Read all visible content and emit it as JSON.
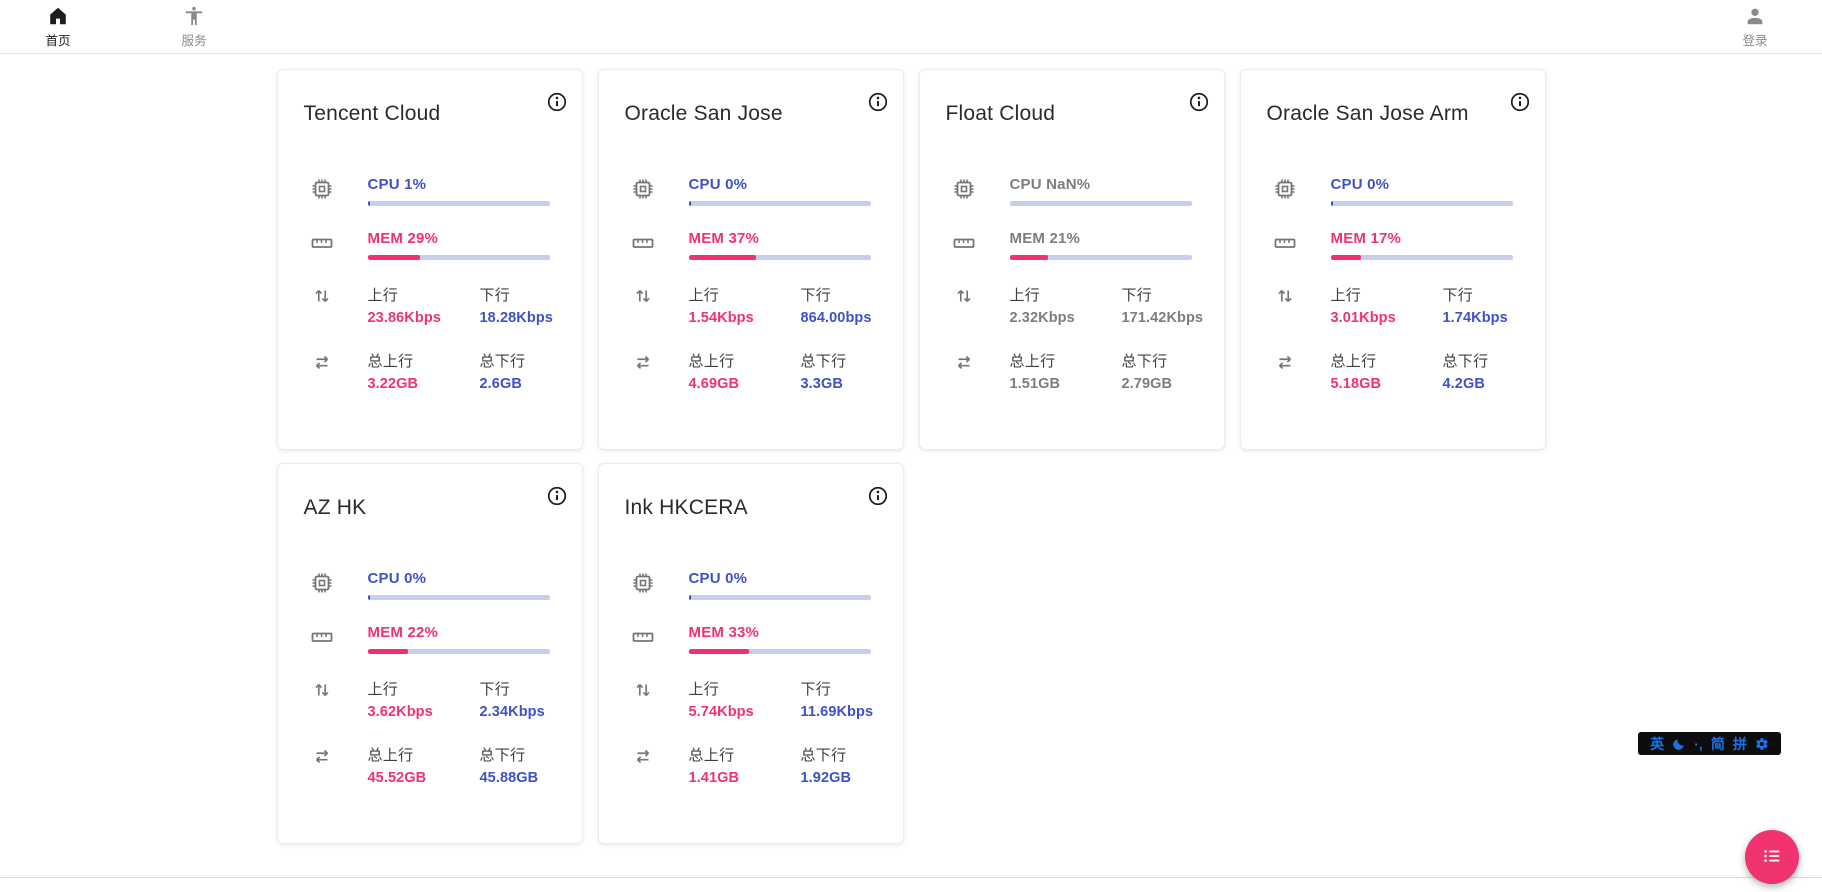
{
  "nav": {
    "home": {
      "label": "首页"
    },
    "services": {
      "label": "服务"
    },
    "login": {
      "label": "登录"
    }
  },
  "labels": {
    "up": "上行",
    "down": "下行",
    "total_up": "总上行",
    "total_down": "总下行"
  },
  "colors": {
    "accent_pink": "#f0326e",
    "accent_blue": "#3f51c8",
    "bar_track": "#c8cdec",
    "muted_text": "#7d7d7d",
    "ime_blue": "#1a73e8"
  },
  "cards": [
    {
      "title": "Tencent Cloud",
      "cpu_text": "CPU 1%",
      "cpu_pct": 1,
      "mem_text": "MEM 29%",
      "mem_pct": 29,
      "up_value": "23.86Kbps",
      "down_value": "18.28Kbps",
      "total_up_value": "3.22GB",
      "total_down_value": "2.6GB",
      "muted": false
    },
    {
      "title": "Oracle San Jose",
      "cpu_text": "CPU 0%",
      "cpu_pct": 0,
      "mem_text": "MEM 37%",
      "mem_pct": 37,
      "up_value": "1.54Kbps",
      "down_value": "864.00bps",
      "total_up_value": "4.69GB",
      "total_down_value": "3.3GB",
      "muted": false
    },
    {
      "title": "Float Cloud",
      "cpu_text": "CPU NaN%",
      "cpu_pct": null,
      "mem_text": "MEM 21%",
      "mem_pct": 21,
      "up_value": "2.32Kbps",
      "down_value": "171.42Kbps",
      "total_up_value": "1.51GB",
      "total_down_value": "2.79GB",
      "muted": true
    },
    {
      "title": "Oracle San Jose Arm",
      "cpu_text": "CPU 0%",
      "cpu_pct": 0,
      "mem_text": "MEM 17%",
      "mem_pct": 17,
      "up_value": "3.01Kbps",
      "down_value": "1.74Kbps",
      "total_up_value": "5.18GB",
      "total_down_value": "4.2GB",
      "muted": false
    },
    {
      "title": "AZ HK",
      "cpu_text": "CPU 0%",
      "cpu_pct": 0,
      "mem_text": "MEM 22%",
      "mem_pct": 22,
      "up_value": "3.62Kbps",
      "down_value": "2.34Kbps",
      "total_up_value": "45.52GB",
      "total_down_value": "45.88GB",
      "muted": false
    },
    {
      "title": "Ink HKCERA",
      "cpu_text": "CPU 0%",
      "cpu_pct": 0,
      "mem_text": "MEM 33%",
      "mem_pct": 33,
      "up_value": "5.74Kbps",
      "down_value": "11.69Kbps",
      "total_up_value": "1.41GB",
      "total_down_value": "1.92GB",
      "muted": false
    }
  ],
  "ime": {
    "english": "英",
    "punct": "·,",
    "simplified": "简",
    "pinyin": "拼"
  }
}
